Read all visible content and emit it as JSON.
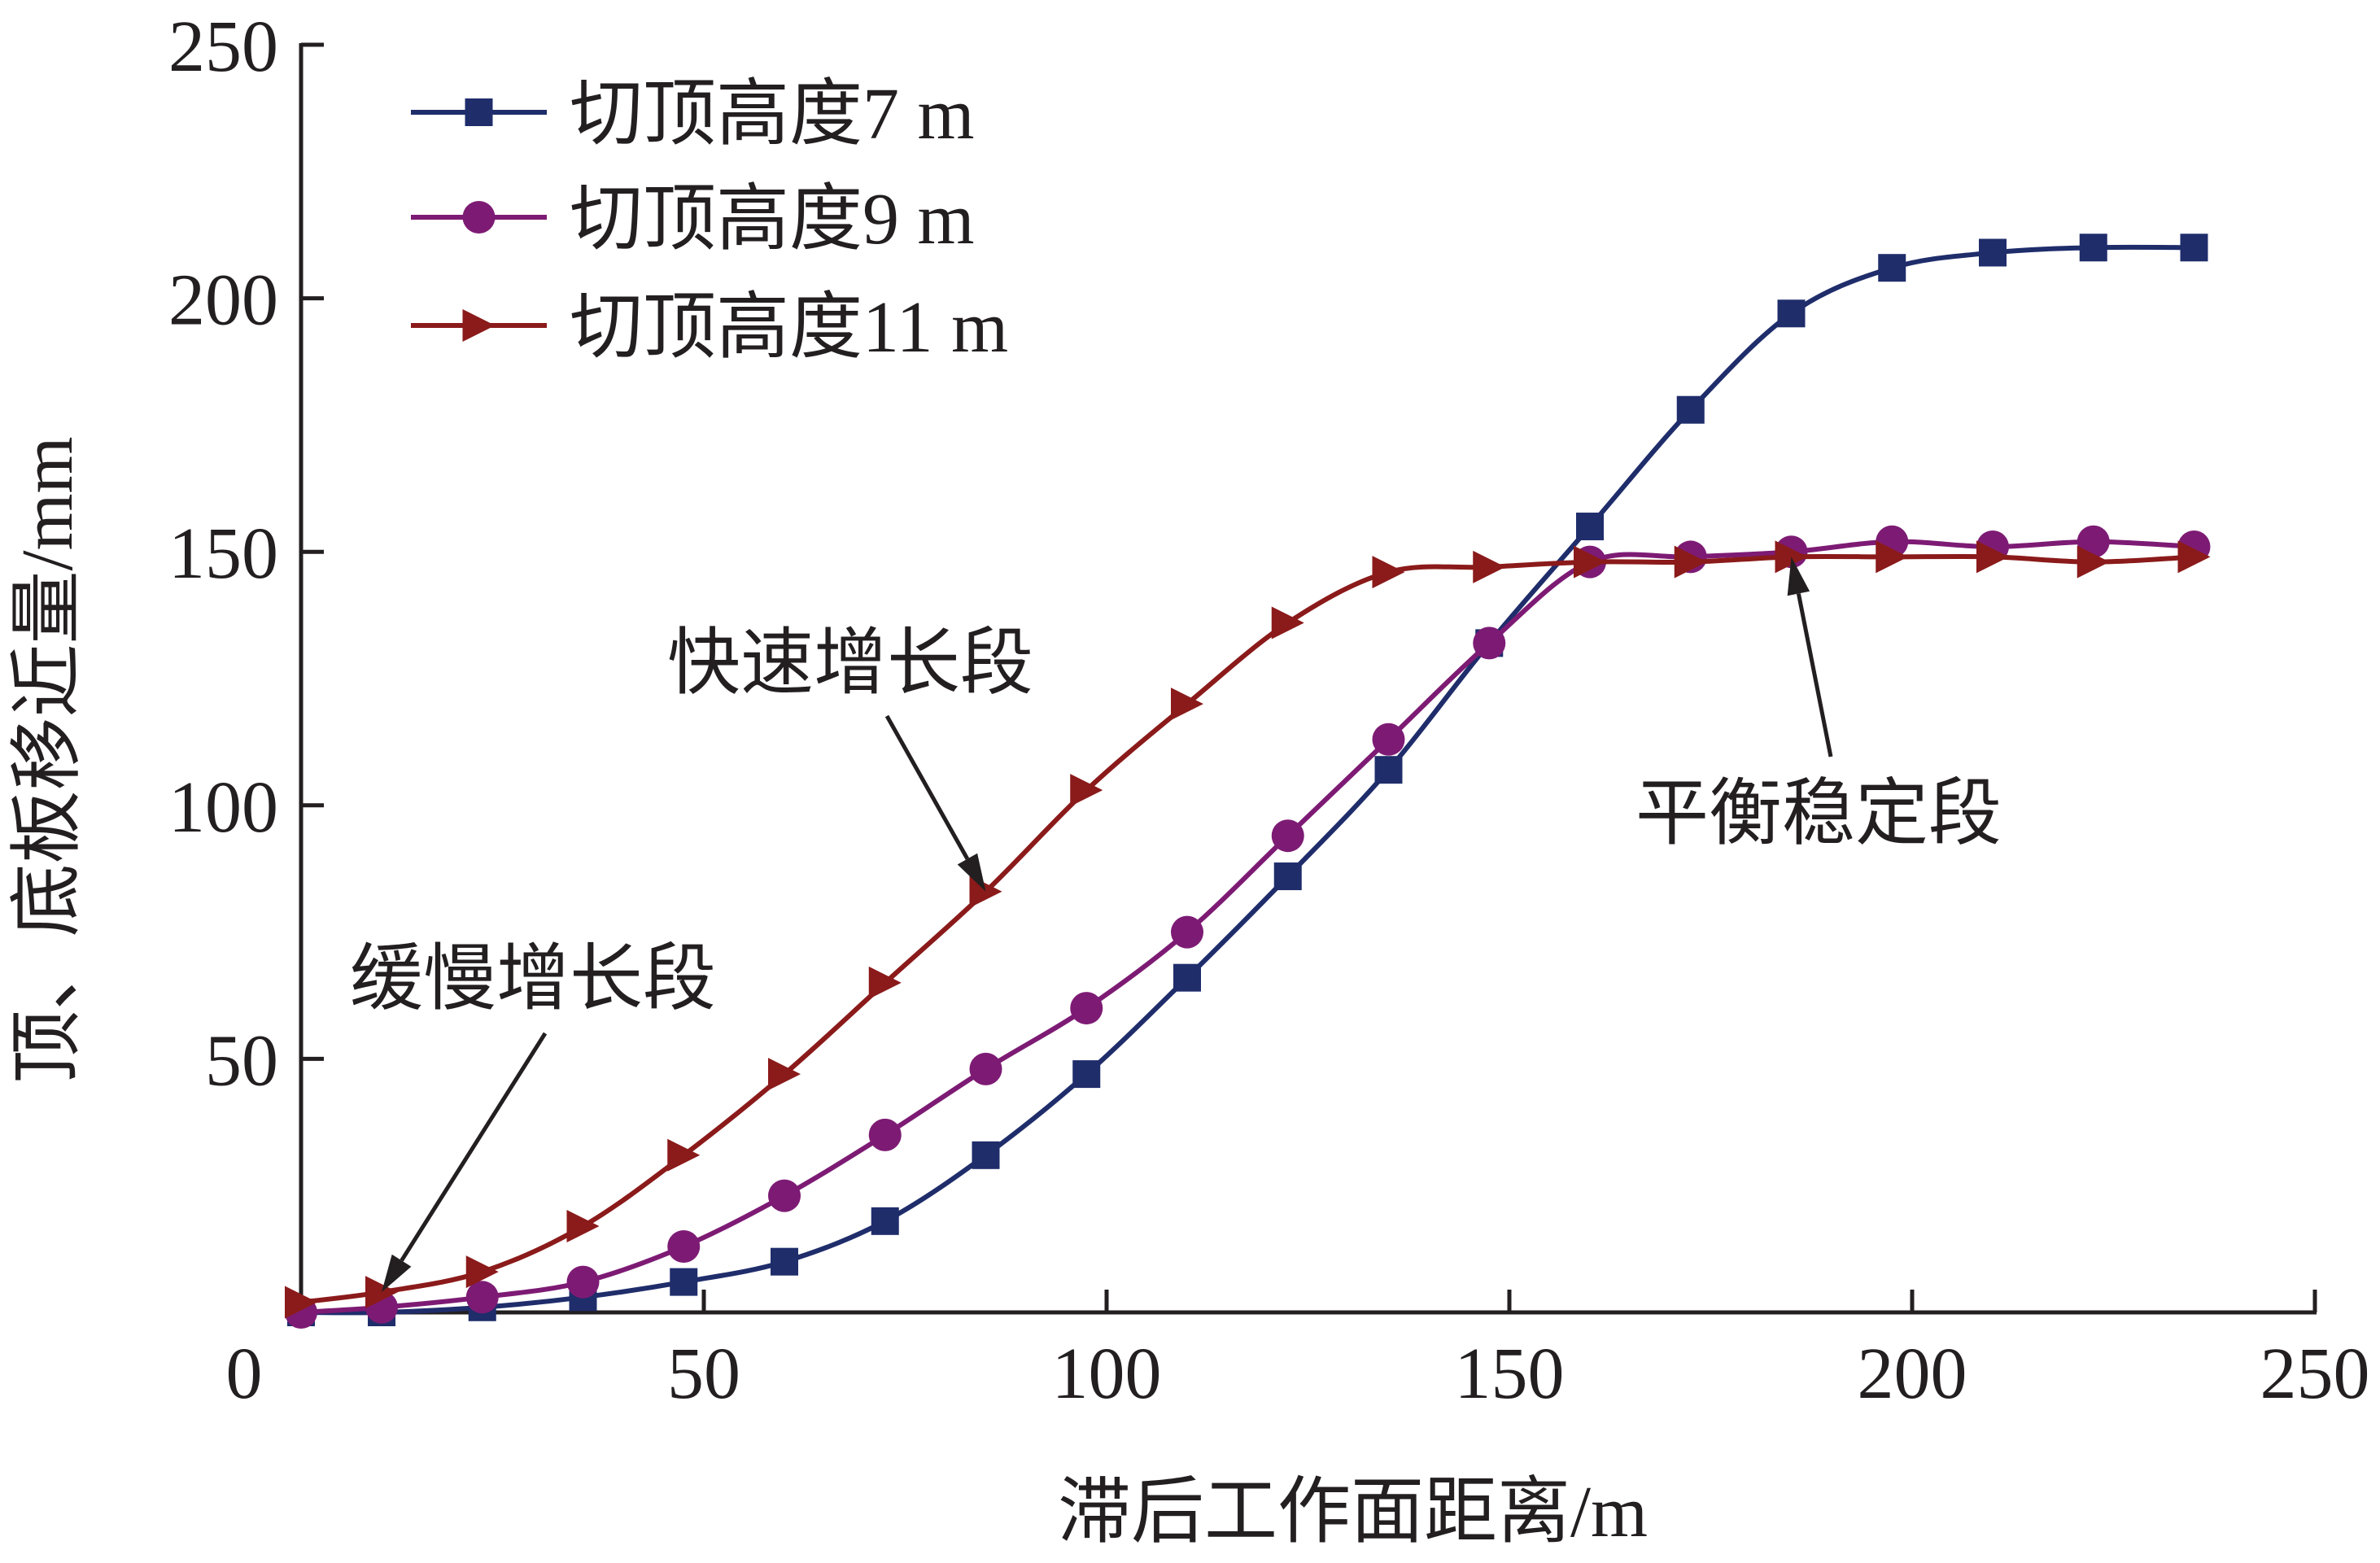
{
  "chart_data": {
    "type": "line",
    "title": "",
    "xlabel": "滞后工作面距离/m",
    "ylabel": "顶、底板移近量/mm",
    "xlim": [
      0,
      250
    ],
    "ylim": [
      0,
      250
    ],
    "x_ticks": [
      0,
      50,
      100,
      150,
      200,
      250
    ],
    "y_ticks": [
      50,
      100,
      150,
      200,
      250
    ],
    "x_tick_labels": [
      "0",
      "50",
      "100",
      "150",
      "200",
      "250"
    ],
    "y_tick_labels": [
      "50",
      "100",
      "150",
      "200",
      "250"
    ],
    "grid": false,
    "legend_position": "top-left",
    "series": [
      {
        "name": "切顶高度7 m",
        "color": "#1f2d6b",
        "marker": "square",
        "x": [
          0,
          10,
          22.5,
          35,
          47.5,
          60,
          72.5,
          85,
          97.5,
          110,
          122.5,
          135,
          147.5,
          160,
          172.5,
          185,
          197.5,
          210,
          222.5,
          235
        ],
        "y": [
          0,
          0,
          1,
          3,
          6,
          10,
          18,
          31,
          47,
          66,
          86,
          107,
          132,
          155,
          178,
          197,
          206,
          209,
          210,
          210
        ]
      },
      {
        "name": "切顶高度9 m",
        "color": "#7d1b74",
        "marker": "circle",
        "x": [
          0,
          10,
          22.5,
          35,
          47.5,
          60,
          72.5,
          85,
          97.5,
          110,
          122.5,
          135,
          147.5,
          160,
          172.5,
          185,
          197.5,
          210,
          222.5,
          235
        ],
        "y": [
          0,
          1,
          3,
          6,
          13,
          23,
          35,
          48,
          60,
          75,
          94,
          113,
          132,
          148,
          149,
          150,
          152,
          151,
          152,
          151
        ]
      },
      {
        "name": "切顶高度11 m",
        "color": "#8b1a1a",
        "marker": "triangle-right",
        "x": [
          0,
          10,
          22.5,
          35,
          47.5,
          60,
          72.5,
          85,
          97.5,
          110,
          122.5,
          135,
          147.5,
          160,
          172.5,
          185,
          197.5,
          210,
          222.5,
          235
        ],
        "y": [
          2,
          4,
          8,
          17,
          31,
          47,
          65,
          83,
          103,
          120,
          136,
          146,
          147,
          148,
          148,
          149,
          149,
          149,
          148,
          149
        ]
      }
    ],
    "annotations": [
      {
        "text": "快速增长段",
        "arrow_to": [
          85,
          83
        ]
      },
      {
        "text": "缓慢增长段",
        "arrow_to": [
          10,
          4
        ]
      },
      {
        "text": "平衡稳定段",
        "arrow_to": [
          185,
          149
        ]
      }
    ]
  }
}
